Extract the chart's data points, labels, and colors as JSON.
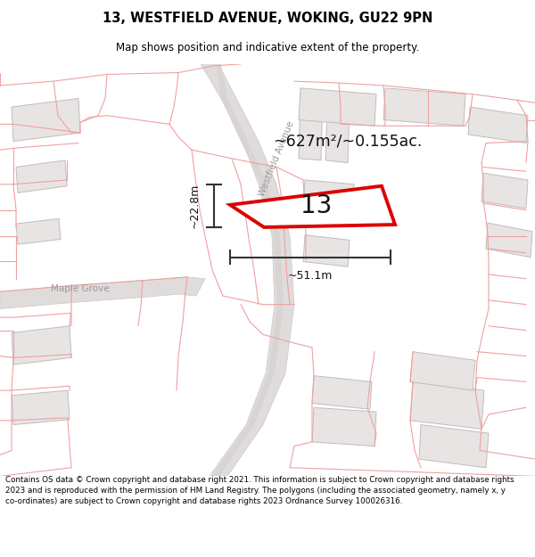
{
  "title": "13, WESTFIELD AVENUE, WOKING, GU22 9PN",
  "subtitle": "Map shows position and indicative extent of the property.",
  "footer": "Contains OS data © Crown copyright and database right 2021. This information is subject to Crown copyright and database rights 2023 and is reproduced with the permission of HM Land Registry. The polygons (including the associated geometry, namely x, y co-ordinates) are subject to Crown copyright and database rights 2023 Ordnance Survey 100026316.",
  "property_label": "13",
  "area_label": "~627m²/~0.155ac.",
  "width_label": "~51.1m",
  "height_label": "~22.8m",
  "map_bg": "#f7f5f5",
  "building_fill": "#e8e4e4",
  "building_edge": "#c0bcbc",
  "road_fill": "#e0dcdc",
  "road_edge": "#ccc8c8",
  "boundary_color": "#f0a0a0",
  "property_color": "#dd0000",
  "measure_color": "#333333",
  "street_color": "#a09898",
  "text_color": "#111111"
}
